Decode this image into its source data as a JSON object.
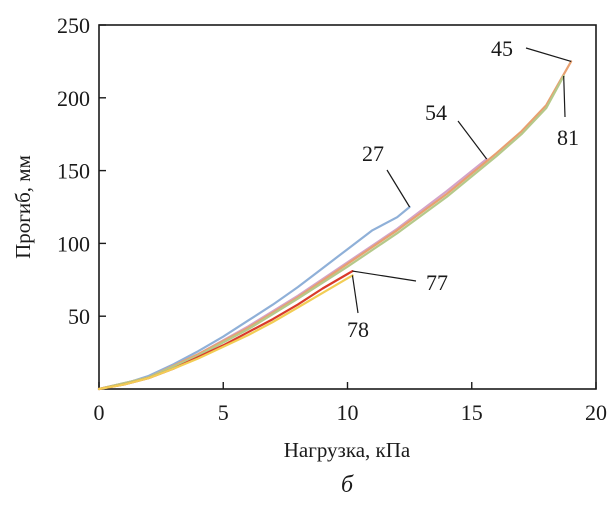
{
  "chart_data": {
    "type": "line",
    "xlabel": "Нагрузка, кПа",
    "ylabel": "Прогиб, мм",
    "panel_label": "б",
    "xlim": [
      0,
      20
    ],
    "ylim": [
      0,
      250
    ],
    "x_ticks": [
      0,
      5,
      10,
      15,
      20
    ],
    "y_ticks": [
      50,
      100,
      150,
      200,
      250
    ],
    "grid": false,
    "series": [
      {
        "name": "27",
        "color": "#8fb0d8",
        "points": [
          [
            0,
            0
          ],
          [
            1,
            3.5
          ],
          [
            2,
            9
          ],
          [
            3,
            17
          ],
          [
            4,
            26
          ],
          [
            5,
            36
          ],
          [
            6,
            47
          ],
          [
            7,
            58
          ],
          [
            8,
            70
          ],
          [
            9,
            83
          ],
          [
            10,
            96
          ],
          [
            11,
            109
          ],
          [
            12,
            118
          ],
          [
            12.5,
            125
          ]
        ]
      },
      {
        "name": "54",
        "color": "#d4a3c8",
        "points": [
          [
            0,
            0
          ],
          [
            2,
            8
          ],
          [
            4,
            24
          ],
          [
            6,
            43
          ],
          [
            8,
            64
          ],
          [
            10,
            87
          ],
          [
            12,
            110
          ],
          [
            14,
            136
          ],
          [
            15.6,
            158
          ]
        ]
      },
      {
        "name": "45",
        "color": "#e8a070",
        "points": [
          [
            0,
            0
          ],
          [
            2,
            8
          ],
          [
            4,
            24
          ],
          [
            6,
            42
          ],
          [
            8,
            63
          ],
          [
            10,
            86
          ],
          [
            12,
            109
          ],
          [
            14,
            134
          ],
          [
            16,
            162
          ],
          [
            17,
            177
          ],
          [
            18,
            195
          ],
          [
            19,
            225
          ]
        ]
      },
      {
        "name": "81",
        "color": "#b5c98a",
        "points": [
          [
            0,
            0
          ],
          [
            2,
            8
          ],
          [
            4,
            23
          ],
          [
            6,
            41
          ],
          [
            8,
            62
          ],
          [
            10,
            84
          ],
          [
            12,
            107
          ],
          [
            14,
            132
          ],
          [
            16,
            160
          ],
          [
            17,
            175
          ],
          [
            18,
            193
          ],
          [
            18.7,
            215
          ]
        ]
      },
      {
        "name": "77",
        "color": "#d93a2a",
        "points": [
          [
            0,
            0
          ],
          [
            1,
            3
          ],
          [
            2,
            7.5
          ],
          [
            3,
            14
          ],
          [
            4,
            22
          ],
          [
            5,
            30
          ],
          [
            6,
            39
          ],
          [
            7,
            48
          ],
          [
            8,
            58
          ],
          [
            9,
            69
          ],
          [
            10,
            79
          ],
          [
            10.2,
            81
          ]
        ]
      },
      {
        "name": "78",
        "color": "#f2cd55",
        "points": [
          [
            0,
            0
          ],
          [
            1,
            3
          ],
          [
            2,
            7.5
          ],
          [
            3,
            14
          ],
          [
            4,
            21
          ],
          [
            5,
            29
          ],
          [
            6,
            37
          ],
          [
            7,
            46
          ],
          [
            8,
            56
          ],
          [
            9,
            66
          ],
          [
            10,
            76
          ],
          [
            10.2,
            78
          ]
        ]
      }
    ],
    "annotations": [
      {
        "text": "27",
        "target": [
          12.5,
          125
        ]
      },
      {
        "text": "54",
        "target": [
          15.6,
          158
        ]
      },
      {
        "text": "45",
        "target": [
          19,
          225
        ]
      },
      {
        "text": "81",
        "target": [
          18.7,
          215
        ]
      },
      {
        "text": "77",
        "target": [
          10.2,
          81
        ]
      },
      {
        "text": "78",
        "target": [
          10.2,
          78
        ]
      }
    ]
  }
}
